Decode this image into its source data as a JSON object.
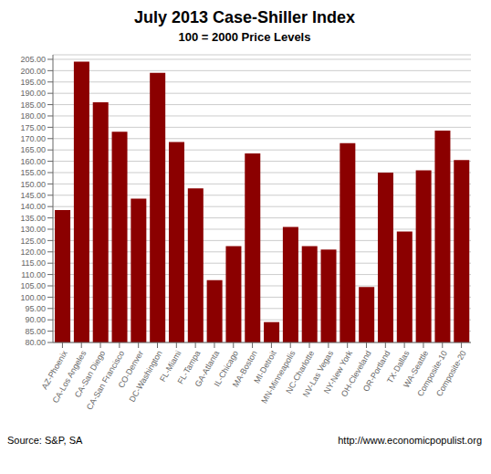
{
  "chart_data": {
    "type": "bar",
    "title": "July 2013 Case-Shiller Index",
    "subtitle": "100 = 2000 Price Levels",
    "categories": [
      "AZ-Phoenix",
      "CA-Los Angeles",
      "CA-San Diego",
      "CA-San Francisco",
      "CO-Denver",
      "DC-Washington",
      "FL-Miami",
      "FL-Tampa",
      "GA-Atlanta",
      "IL-Chicago",
      "MA-Boston",
      "MI-Detroit",
      "MN-Minneapolis",
      "NC-Charlotte",
      "NV-Las Vegas",
      "NY-New York",
      "OH-Cleveland",
      "OR-Portland",
      "TX-Dallas",
      "WA-Seattle",
      "Composite-10",
      "Composite-20"
    ],
    "values": [
      138.5,
      204.0,
      186.0,
      173.0,
      143.5,
      199.0,
      168.5,
      148.0,
      107.5,
      122.5,
      163.5,
      89.0,
      131.0,
      122.5,
      121.0,
      168.0,
      104.5,
      155.0,
      129.0,
      156.0,
      173.5,
      160.5
    ],
    "color": "#8B0000",
    "ylim": [
      80.0,
      207.0
    ],
    "yticks": [
      {
        "value": 80,
        "label": "80.00"
      },
      {
        "value": 85,
        "label": "85.00"
      },
      {
        "value": 90,
        "label": "90.00"
      },
      {
        "value": 95,
        "label": "95.00"
      },
      {
        "value": 100,
        "label": "100.00"
      },
      {
        "value": 105,
        "label": "105.00"
      },
      {
        "value": 110,
        "label": "110.00"
      },
      {
        "value": 115,
        "label": "115.00"
      },
      {
        "value": 120,
        "label": "120.00"
      },
      {
        "value": 125,
        "label": "125.00"
      },
      {
        "value": 130,
        "label": "130.00"
      },
      {
        "value": 135,
        "label": "135.00"
      },
      {
        "value": 140,
        "label": "140.00"
      },
      {
        "value": 145,
        "label": "145.00"
      },
      {
        "value": 150,
        "label": "150.00"
      },
      {
        "value": 155,
        "label": "155.00"
      },
      {
        "value": 160,
        "label": "160.00"
      },
      {
        "value": 165,
        "label": "165.00"
      },
      {
        "value": 170,
        "label": "170.00"
      },
      {
        "value": 175,
        "label": "175.00"
      },
      {
        "value": 180,
        "label": "180.00"
      },
      {
        "value": 185,
        "label": "185.00"
      },
      {
        "value": 190,
        "label": "190.00"
      },
      {
        "value": 195,
        "label": "195.00"
      },
      {
        "value": 200,
        "label": "200.00"
      },
      {
        "value": 205,
        "label": "205.00"
      }
    ],
    "grid": true,
    "annotations": [
      "Source: S&P, SA",
      "http://www.economicpopulist.org"
    ]
  }
}
